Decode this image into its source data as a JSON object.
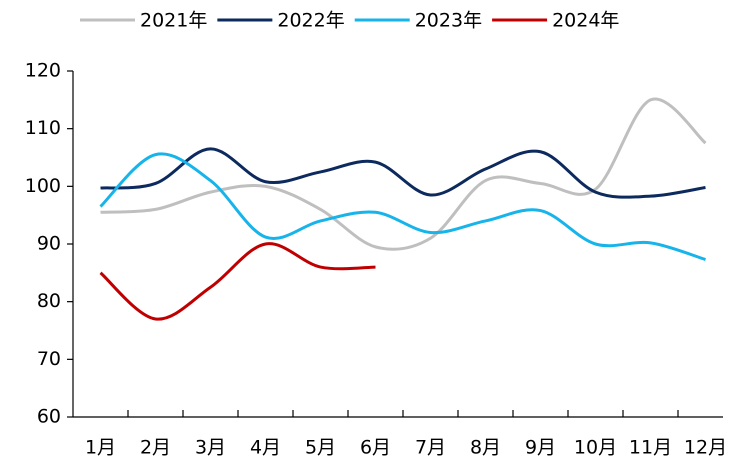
{
  "chart_data": {
    "type": "line",
    "categories": [
      "1月",
      "2月",
      "3月",
      "4月",
      "5月",
      "6月",
      "7月",
      "8月",
      "9月",
      "10月",
      "11月",
      "12月"
    ],
    "series": [
      {
        "name": "2021年",
        "color": "#bfbfbf",
        "values": [
          95.5,
          96,
          99,
          100,
          96,
          89.5,
          91,
          101,
          100.5,
          99.5,
          115,
          107.5
        ]
      },
      {
        "name": "2022年",
        "color": "#0d2a5e",
        "values": [
          99.7,
          100.5,
          106.5,
          100.8,
          102.5,
          104.2,
          98.5,
          103,
          106,
          99,
          98.3,
          99.8
        ]
      },
      {
        "name": "2023年",
        "color": "#16b4ea",
        "values": [
          96.5,
          105.5,
          101,
          91.2,
          94,
          95.5,
          92,
          94,
          95.8,
          90,
          90.2,
          87.3
        ]
      },
      {
        "name": "2024年",
        "color": "#c00000",
        "values": [
          85,
          77,
          82.5,
          90,
          86,
          86,
          null,
          null,
          null,
          null,
          null,
          null
        ]
      }
    ],
    "ylim": [
      60,
      120
    ],
    "yticks": [
      60,
      70,
      80,
      90,
      100,
      110,
      120
    ],
    "legend": "top",
    "smooth": true
  }
}
